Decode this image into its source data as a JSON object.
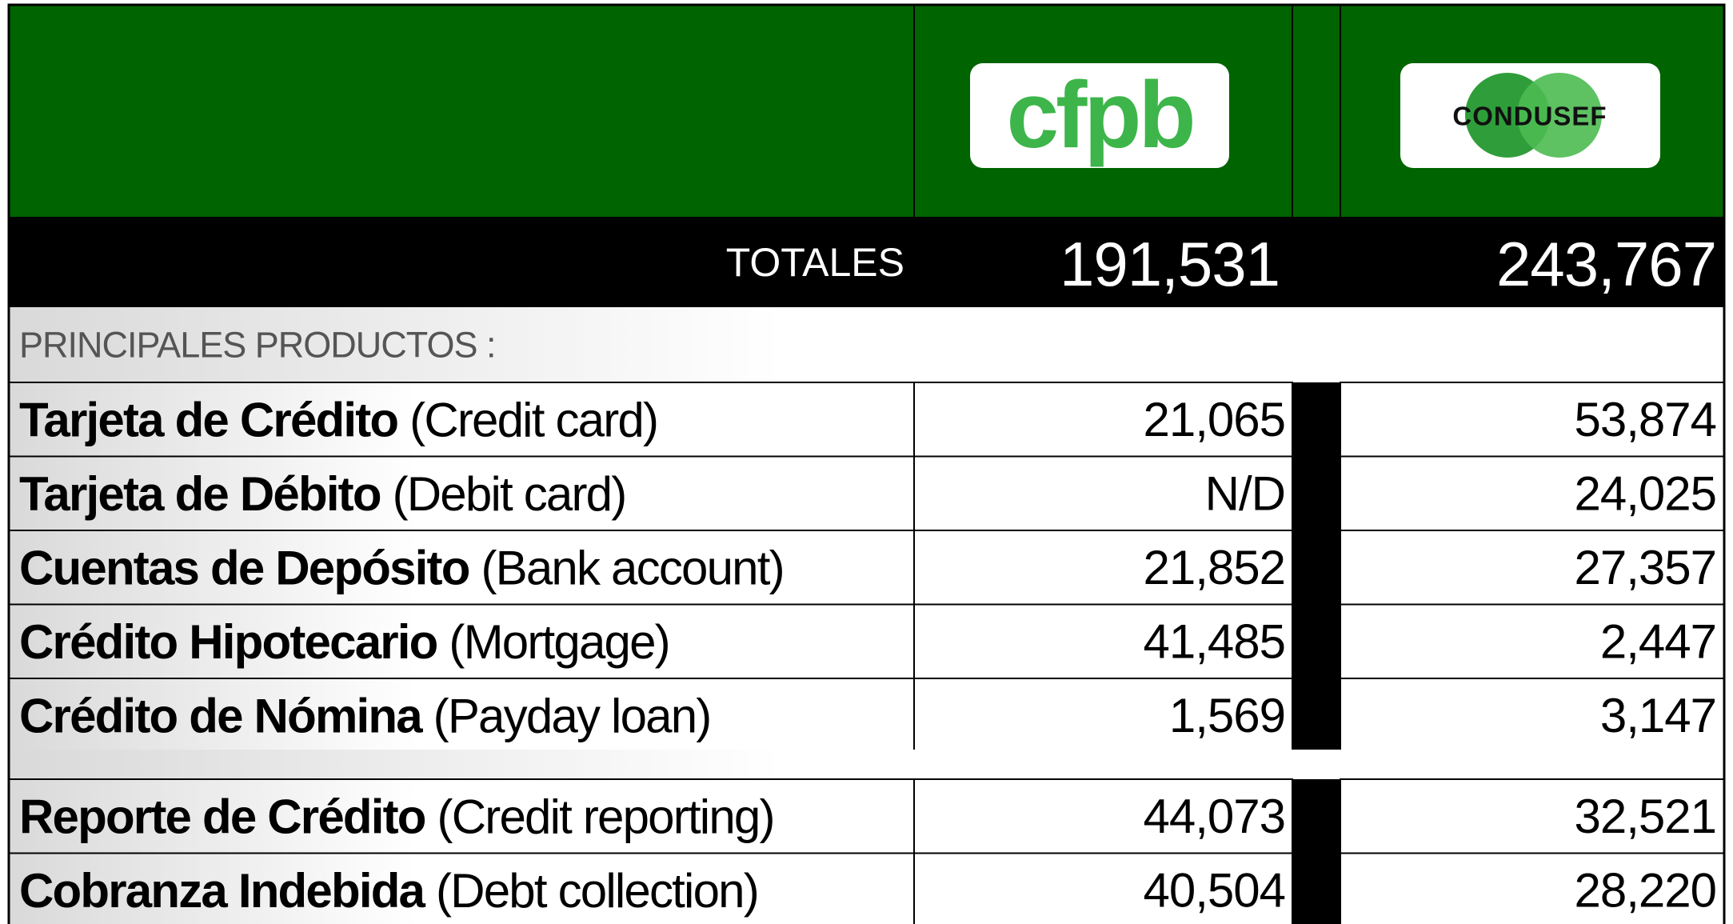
{
  "header": {
    "logos": [
      "cfpb",
      "CONDUSEF"
    ]
  },
  "totals": {
    "label": "TOTALES",
    "cfpb": "191,531",
    "condusef": "243,767"
  },
  "section": "PRINCIPALES PRODUCTOS :",
  "groups": [
    [
      {
        "name": "Tarjeta de Crédito",
        "english": "(Credit card)",
        "cfpb": "21,065",
        "condusef": "53,874"
      },
      {
        "name": "Tarjeta de Débito",
        "english": "(Debit card)",
        "cfpb": "N/D",
        "condusef": "24,025"
      },
      {
        "name": "Cuentas de Depósito",
        "english": "(Bank account)",
        "cfpb": "21,852",
        "condusef": "27,357"
      },
      {
        "name": "Crédito Hipotecario",
        "english": "(Mortgage)",
        "cfpb": "41,485",
        "condusef": "2,447"
      },
      {
        "name": "Crédito de Nómina",
        "english": "(Payday loan)",
        "cfpb": "1,569",
        "condusef": "3,147"
      }
    ],
    [
      {
        "name": "Reporte de Crédito",
        "english": "(Credit reporting)",
        "cfpb": "44,073",
        "condusef": "32,521"
      },
      {
        "name": "Cobranza Indebida",
        "english": "(Debt collection)",
        "cfpb": "40,504",
        "condusef": "28,220"
      }
    ]
  ]
}
